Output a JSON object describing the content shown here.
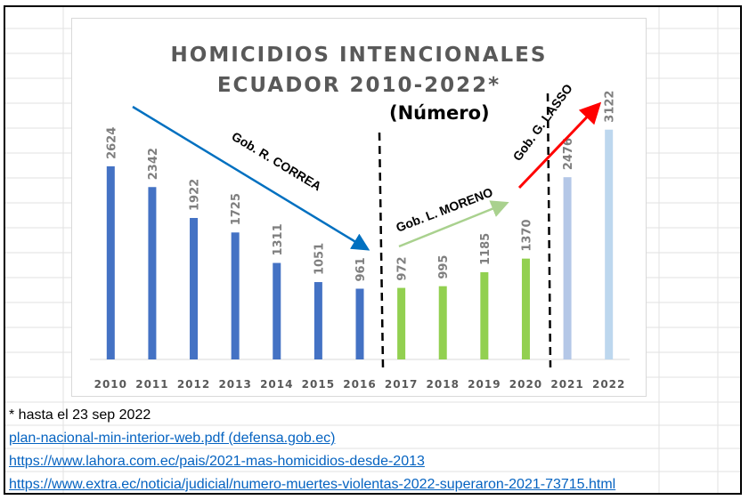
{
  "chart_data": {
    "type": "bar",
    "title_line1": "HOMICIDIOS INTENCIONALES",
    "title_line2": "ECUADOR 2010-2022*",
    "subtitle": "(Número)",
    "categories": [
      "2010",
      "2011",
      "2012",
      "2013",
      "2014",
      "2015",
      "2016",
      "2017",
      "2018",
      "2019",
      "2020",
      "2021",
      "2022"
    ],
    "values": [
      2624,
      2342,
      1922,
      1725,
      1311,
      1051,
      961,
      972,
      995,
      1185,
      1370,
      2476,
      3122
    ],
    "bar_colors": [
      "#4472c4",
      "#4472c4",
      "#4472c4",
      "#4472c4",
      "#4472c4",
      "#4472c4",
      "#4472c4",
      "#92d050",
      "#92d050",
      "#92d050",
      "#92d050",
      "#b4c7e7",
      "#bdd7ee"
    ],
    "ylim": [
      0,
      3300
    ],
    "grid": false,
    "annotations": [
      {
        "text": "Gob. R. CORREA",
        "color": "#000000",
        "arrow_color": "#0070c0"
      },
      {
        "text": "Gob. L. MORENO",
        "color": "#000000",
        "arrow_color": "#a9d18e"
      },
      {
        "text": "Gob. G. LASSO",
        "color": "#000000",
        "arrow_color": "#ff0000"
      }
    ]
  },
  "footnote": "* hasta el 23 sep 2022",
  "links": [
    "plan-nacional-min-interior-web.pdf (defensa.gob.ec)",
    "https://www.lahora.com.ec/pais/2021-mas-homicidios-desde-2013",
    "https://www.extra.ec/noticia/judicial/numero-muertes-violentas-2022-superaron-2021-73715.html"
  ]
}
